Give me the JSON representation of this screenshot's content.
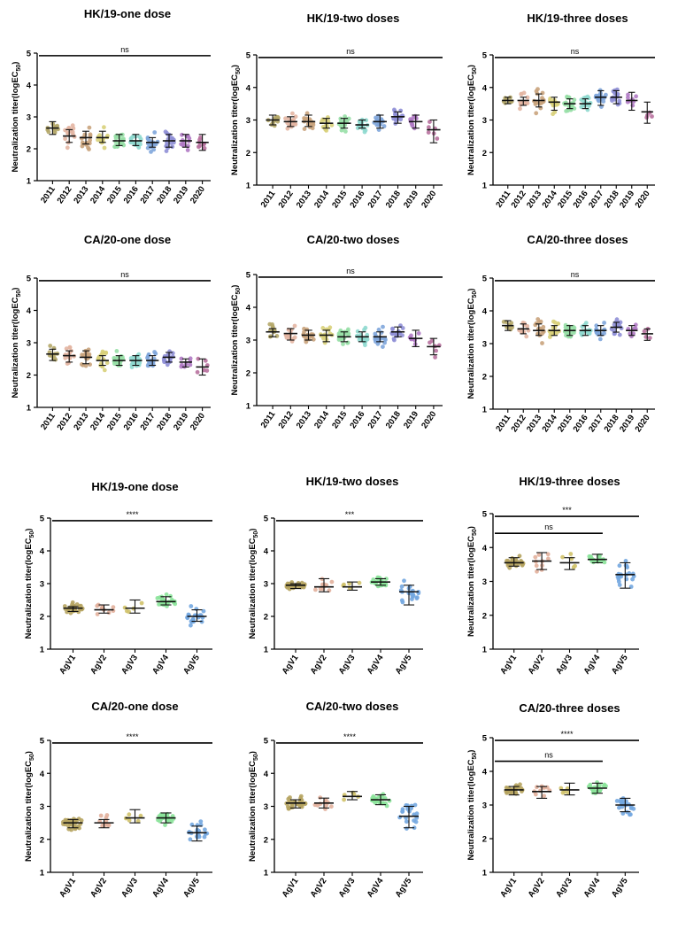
{
  "figure": {
    "ylabel_main": "Neutralization titer(logEC",
    "ylabel_sub": "50",
    "ylabel_close": ")",
    "palette": {
      "2011": "#b5a86a",
      "2012": "#e3b5a2",
      "2013": "#c9a37c",
      "2014": "#d8d07a",
      "2015": "#97dfa6",
      "2016": "#8fd9cf",
      "2017": "#7fa6dc",
      "2018": "#8f8fd6",
      "2019": "#b07ac4",
      "2020": "#b8719e",
      "AgV1": "#b6a461",
      "AgV2": "#e2b09c",
      "AgV3": "#d0c26a",
      "AgV4": "#8be39a",
      "AgV5": "#73a7e0"
    }
  },
  "chart_data": [
    {
      "type": "scatter",
      "title": "HK/19-one dose",
      "ylabel": "Neutralization titer(logEC50)",
      "ylim": [
        1,
        5
      ],
      "yticks": [
        1,
        2,
        3,
        4,
        5
      ],
      "categories": [
        "2011",
        "2012",
        "2013",
        "2014",
        "2015",
        "2016",
        "2017",
        "2018",
        "2019",
        "2020"
      ],
      "medians": [
        2.65,
        2.4,
        2.35,
        2.35,
        2.25,
        2.25,
        2.2,
        2.25,
        2.25,
        2.2
      ],
      "iqr_low": [
        2.45,
        2.2,
        2.15,
        2.2,
        2.1,
        2.1,
        2.05,
        2.05,
        2.05,
        1.95
      ],
      "iqr_high": [
        2.85,
        2.6,
        2.55,
        2.55,
        2.45,
        2.45,
        2.35,
        2.45,
        2.45,
        2.45
      ],
      "n": [
        12,
        14,
        16,
        14,
        20,
        18,
        18,
        16,
        12,
        8
      ],
      "spread": [
        0.2,
        0.25,
        0.25,
        0.2,
        0.2,
        0.2,
        0.2,
        0.22,
        0.2,
        0.25
      ],
      "significance": [
        {
          "label": "ns",
          "from": 0,
          "to": 9,
          "y": 4.92
        }
      ]
    },
    {
      "type": "scatter",
      "title": "HK/19-two doses",
      "ylabel": "Neutralization titer(logEC50)",
      "ylim": [
        1,
        5
      ],
      "yticks": [
        1,
        2,
        3,
        4,
        5
      ],
      "categories": [
        "2011",
        "2012",
        "2013",
        "2014",
        "2015",
        "2016",
        "2017",
        "2018",
        "2019",
        "2020"
      ],
      "medians": [
        3.0,
        2.95,
        2.95,
        2.9,
        2.9,
        2.85,
        2.95,
        3.1,
        2.95,
        2.7
      ],
      "iqr_low": [
        2.85,
        2.8,
        2.8,
        2.75,
        2.75,
        2.75,
        2.75,
        2.9,
        2.75,
        2.3
      ],
      "iqr_high": [
        3.15,
        3.1,
        3.15,
        3.05,
        3.05,
        3.0,
        3.15,
        3.25,
        3.15,
        3.0
      ],
      "n": [
        12,
        14,
        16,
        14,
        20,
        18,
        18,
        16,
        10,
        6
      ],
      "spread": [
        0.15,
        0.2,
        0.2,
        0.2,
        0.15,
        0.15,
        0.2,
        0.2,
        0.2,
        0.3
      ],
      "significance": [
        {
          "label": "ns",
          "from": 0,
          "to": 9,
          "y": 4.92
        }
      ]
    },
    {
      "type": "scatter",
      "title": "HK/19-three doses",
      "ylabel": "Neutralization titer(logEC50)",
      "ylim": [
        1,
        5
      ],
      "yticks": [
        1,
        2,
        3,
        4,
        5
      ],
      "categories": [
        "2011",
        "2012",
        "2013",
        "2014",
        "2015",
        "2016",
        "2017",
        "2018",
        "2019",
        "2020"
      ],
      "medians": [
        3.6,
        3.6,
        3.6,
        3.55,
        3.5,
        3.5,
        3.7,
        3.7,
        3.6,
        3.25
      ],
      "iqr_low": [
        3.5,
        3.45,
        3.4,
        3.3,
        3.35,
        3.35,
        3.45,
        3.5,
        3.3,
        2.9
      ],
      "iqr_high": [
        3.7,
        3.7,
        3.8,
        3.7,
        3.65,
        3.65,
        3.9,
        3.9,
        3.85,
        3.55
      ],
      "n": [
        8,
        12,
        16,
        18,
        22,
        16,
        18,
        16,
        8,
        4
      ],
      "spread": [
        0.1,
        0.25,
        0.25,
        0.25,
        0.2,
        0.2,
        0.2,
        0.22,
        0.22,
        0.3
      ],
      "significance": [
        {
          "label": "ns",
          "from": 0,
          "to": 9,
          "y": 4.92
        }
      ]
    },
    {
      "type": "scatter",
      "title": "CA/20-one dose",
      "ylabel": "Neutralization titer(logEC50)",
      "ylim": [
        1,
        5
      ],
      "yticks": [
        1,
        2,
        3,
        4,
        5
      ],
      "categories": [
        "2011",
        "2012",
        "2013",
        "2014",
        "2015",
        "2016",
        "2017",
        "2018",
        "2019",
        "2020"
      ],
      "medians": [
        2.65,
        2.6,
        2.55,
        2.45,
        2.45,
        2.45,
        2.45,
        2.55,
        2.4,
        2.25
      ],
      "iqr_low": [
        2.45,
        2.4,
        2.35,
        2.3,
        2.3,
        2.3,
        2.3,
        2.4,
        2.25,
        2.0
      ],
      "iqr_high": [
        2.8,
        2.75,
        2.75,
        2.6,
        2.6,
        2.6,
        2.6,
        2.7,
        2.5,
        2.5
      ],
      "n": [
        12,
        14,
        16,
        16,
        22,
        18,
        18,
        16,
        8,
        6
      ],
      "spread": [
        0.2,
        0.2,
        0.22,
        0.2,
        0.18,
        0.18,
        0.2,
        0.2,
        0.18,
        0.25
      ],
      "significance": [
        {
          "label": "ns",
          "from": 0,
          "to": 9,
          "y": 4.92
        }
      ]
    },
    {
      "type": "scatter",
      "title": "CA/20-two doses",
      "ylabel": "Neutralization titer(logEC50)",
      "ylim": [
        1,
        5
      ],
      "yticks": [
        1,
        2,
        3,
        4,
        5
      ],
      "categories": [
        "2011",
        "2012",
        "2013",
        "2014",
        "2015",
        "2016",
        "2017",
        "2018",
        "2019",
        "2020"
      ],
      "medians": [
        3.25,
        3.2,
        3.15,
        3.15,
        3.1,
        3.1,
        3.1,
        3.25,
        3.05,
        2.8
      ],
      "iqr_low": [
        3.1,
        3.0,
        3.0,
        2.95,
        2.95,
        2.95,
        2.95,
        3.1,
        2.8,
        2.55
      ],
      "iqr_high": [
        3.35,
        3.35,
        3.3,
        3.3,
        3.25,
        3.25,
        3.25,
        3.4,
        3.3,
        3.05
      ],
      "n": [
        12,
        14,
        16,
        16,
        22,
        18,
        18,
        16,
        8,
        6
      ],
      "spread": [
        0.15,
        0.2,
        0.2,
        0.25,
        0.18,
        0.2,
        0.2,
        0.22,
        0.2,
        0.25
      ],
      "significance": [
        {
          "label": "ns",
          "from": 0,
          "to": 9,
          "y": 4.92
        }
      ]
    },
    {
      "type": "scatter",
      "title": "CA/20-three doses",
      "ylabel": "Neutralization titer(logEC50)",
      "ylim": [
        1,
        5
      ],
      "yticks": [
        1,
        2,
        3,
        4,
        5
      ],
      "categories": [
        "2011",
        "2012",
        "2013",
        "2014",
        "2015",
        "2016",
        "2017",
        "2018",
        "2019",
        "2020"
      ],
      "medians": [
        3.55,
        3.45,
        3.4,
        3.4,
        3.4,
        3.4,
        3.4,
        3.5,
        3.4,
        3.3
      ],
      "iqr_low": [
        3.4,
        3.3,
        3.25,
        3.25,
        3.25,
        3.25,
        3.25,
        3.35,
        3.25,
        3.1
      ],
      "iqr_high": [
        3.7,
        3.6,
        3.6,
        3.55,
        3.55,
        3.55,
        3.55,
        3.65,
        3.55,
        3.45
      ],
      "n": [
        8,
        12,
        16,
        18,
        22,
        16,
        16,
        14,
        8,
        4
      ],
      "spread": [
        0.12,
        0.22,
        0.25,
        0.25,
        0.2,
        0.2,
        0.18,
        0.18,
        0.18,
        0.2
      ],
      "significance": [
        {
          "label": "ns",
          "from": 0,
          "to": 9,
          "y": 4.92
        }
      ]
    },
    {
      "type": "scatter",
      "title": "HK/19-one dose",
      "ylabel": "Neutralization titer(logEC50)",
      "ylim": [
        1,
        5
      ],
      "yticks": [
        1,
        2,
        3,
        4,
        5
      ],
      "categories": [
        "AgV1",
        "AgV2",
        "AgV3",
        "AgV4",
        "AgV5"
      ],
      "medians": [
        2.25,
        2.2,
        2.25,
        2.45,
        2.0
      ],
      "iqr_low": [
        2.15,
        2.1,
        2.1,
        2.35,
        1.85
      ],
      "iqr_high": [
        2.3,
        2.35,
        2.5,
        2.6,
        2.2
      ],
      "n": [
        30,
        10,
        5,
        24,
        20
      ],
      "spread": [
        0.1,
        0.18,
        0.2,
        0.15,
        0.2
      ],
      "significance": [
        {
          "label": "****",
          "from": 0,
          "to": 4,
          "y": 4.92
        }
      ]
    },
    {
      "type": "scatter",
      "title": "HK/19-two doses",
      "ylabel": "Neutralization titer(logEC50)",
      "ylim": [
        1,
        5
      ],
      "yticks": [
        1,
        2,
        3,
        4,
        5
      ],
      "categories": [
        "AgV1",
        "AgV2",
        "AgV3",
        "AgV4",
        "AgV5"
      ],
      "medians": [
        2.95,
        2.9,
        2.9,
        3.05,
        2.75
      ],
      "iqr_low": [
        2.85,
        2.75,
        2.8,
        2.95,
        2.35
      ],
      "iqr_high": [
        3.0,
        3.15,
        3.05,
        3.15,
        2.95
      ],
      "n": [
        30,
        10,
        5,
        24,
        20
      ],
      "spread": [
        0.1,
        0.2,
        0.15,
        0.12,
        0.25
      ],
      "significance": [
        {
          "label": "***",
          "from": 0,
          "to": 4,
          "y": 4.92
        }
      ]
    },
    {
      "type": "scatter",
      "title": "HK/19-three doses",
      "ylabel": "Neutralization titer(logEC50)",
      "ylim": [
        1,
        5
      ],
      "yticks": [
        1,
        2,
        3,
        4,
        5
      ],
      "categories": [
        "AgV1",
        "AgV2",
        "AgV3",
        "AgV4",
        "AgV5"
      ],
      "medians": [
        3.55,
        3.6,
        3.55,
        3.65,
        3.2
      ],
      "iqr_low": [
        3.45,
        3.35,
        3.35,
        3.55,
        2.8
      ],
      "iqr_high": [
        3.7,
        3.85,
        3.7,
        3.8,
        3.55
      ],
      "n": [
        30,
        10,
        5,
        20,
        20
      ],
      "spread": [
        0.12,
        0.25,
        0.2,
        0.12,
        0.28
      ],
      "significance": [
        {
          "label": "***",
          "from": 0,
          "to": 4,
          "y": 4.92
        },
        {
          "label": "ns",
          "from": 0,
          "to": 3,
          "y": 4.42
        }
      ]
    },
    {
      "type": "scatter",
      "title": "CA/20-one dose",
      "ylabel": "Neutralization titer(logEC50)",
      "ylim": [
        1,
        5
      ],
      "yticks": [
        1,
        2,
        3,
        4,
        5
      ],
      "categories": [
        "AgV1",
        "AgV2",
        "AgV3",
        "AgV4",
        "AgV5"
      ],
      "medians": [
        2.5,
        2.5,
        2.65,
        2.65,
        2.2
      ],
      "iqr_low": [
        2.35,
        2.35,
        2.5,
        2.5,
        1.95
      ],
      "iqr_high": [
        2.6,
        2.6,
        2.9,
        2.8,
        2.4
      ],
      "n": [
        30,
        10,
        5,
        24,
        20
      ],
      "spread": [
        0.15,
        0.15,
        0.2,
        0.15,
        0.22
      ],
      "significance": [
        {
          "label": "****",
          "from": 0,
          "to": 4,
          "y": 4.92
        }
      ]
    },
    {
      "type": "scatter",
      "title": "CA/20-two doses",
      "ylabel": "Neutralization titer(logEC50)",
      "ylim": [
        1,
        5
      ],
      "yticks": [
        1,
        2,
        3,
        4,
        5
      ],
      "categories": [
        "AgV1",
        "AgV2",
        "AgV3",
        "AgV4",
        "AgV5"
      ],
      "medians": [
        3.1,
        3.1,
        3.3,
        3.2,
        2.7
      ],
      "iqr_low": [
        2.95,
        2.95,
        3.2,
        3.05,
        2.35
      ],
      "iqr_high": [
        3.2,
        3.25,
        3.45,
        3.35,
        3.0
      ],
      "n": [
        30,
        10,
        5,
        24,
        20
      ],
      "spread": [
        0.15,
        0.15,
        0.15,
        0.15,
        0.3
      ],
      "significance": [
        {
          "label": "****",
          "from": 0,
          "to": 4,
          "y": 4.92
        }
      ]
    },
    {
      "type": "scatter",
      "title": "CA/20-three doses",
      "ylabel": "Neutralization titer(logEC50)",
      "ylim": [
        1,
        5
      ],
      "yticks": [
        1,
        2,
        3,
        4,
        5
      ],
      "categories": [
        "AgV1",
        "AgV2",
        "AgV3",
        "AgV4",
        "AgV5"
      ],
      "medians": [
        3.45,
        3.4,
        3.45,
        3.5,
        3.0
      ],
      "iqr_low": [
        3.3,
        3.2,
        3.3,
        3.35,
        2.8
      ],
      "iqr_high": [
        3.55,
        3.55,
        3.65,
        3.65,
        3.2
      ],
      "n": [
        30,
        10,
        5,
        24,
        20
      ],
      "spread": [
        0.12,
        0.2,
        0.15,
        0.15,
        0.2
      ],
      "significance": [
        {
          "label": "****",
          "from": 0,
          "to": 4,
          "y": 4.92
        },
        {
          "label": "ns",
          "from": 0,
          "to": 3,
          "y": 4.3
        }
      ]
    }
  ]
}
